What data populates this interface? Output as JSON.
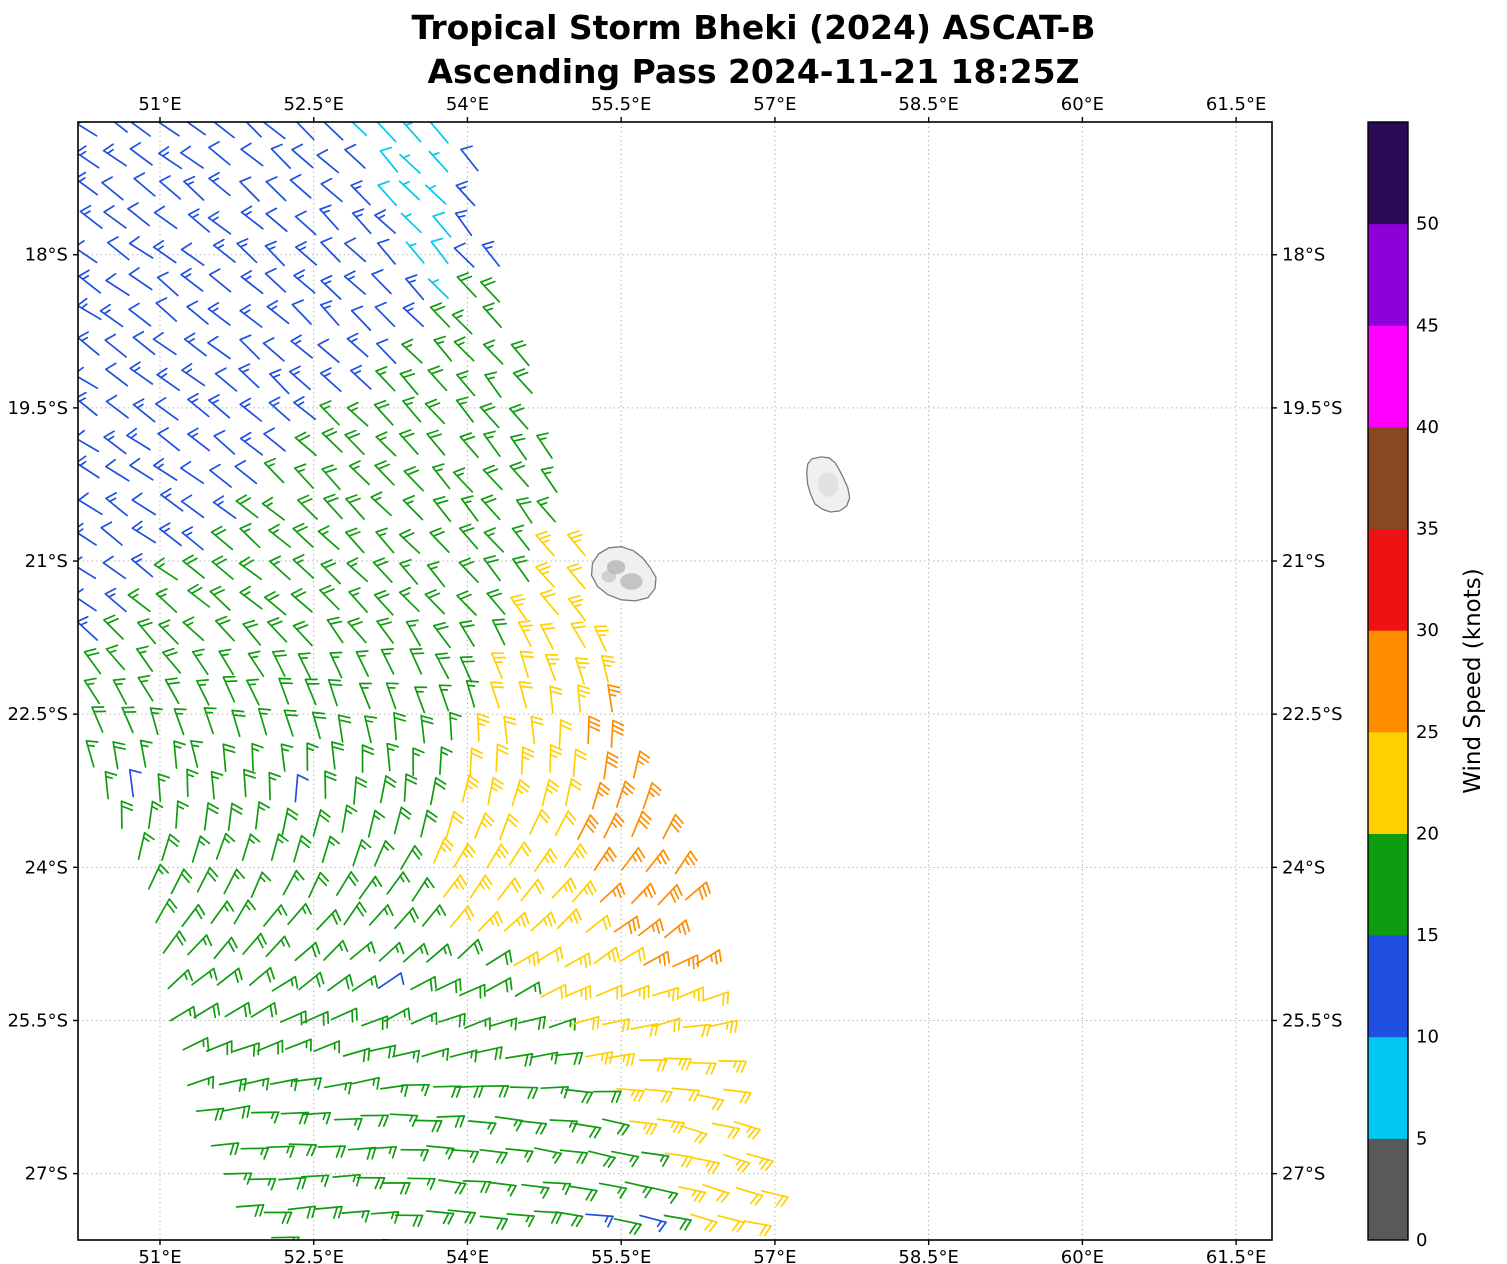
{
  "title": {
    "line1": "Tropical Storm Bheki (2024) ASCAT-B",
    "line2": "Ascending Pass 2024-11-21 18:25Z"
  },
  "chart_data": {
    "type": "wind_barb_map",
    "title": "Tropical Storm Bheki (2024) ASCAT-B",
    "subtitle": "Ascending Pass 2024-11-21 18:25Z",
    "grid": {
      "show": true,
      "style": "dotted",
      "color": "#b5b5b5"
    },
    "x_axis": {
      "range": [
        50.2,
        61.85
      ],
      "ticks": [
        51,
        52.5,
        54,
        55.5,
        57,
        58.5,
        60,
        61.5
      ],
      "tick_labels": [
        "51°E",
        "52.5°E",
        "54°E",
        "55.5°E",
        "57°E",
        "58.5°E",
        "60°E",
        "61.5°E"
      ],
      "labels_on": "top and bottom"
    },
    "y_axis": {
      "range": [
        16.7,
        27.65
      ],
      "direction": "south-down",
      "ticks": [
        18,
        19.5,
        21,
        22.5,
        24,
        25.5,
        27
      ],
      "tick_labels": [
        "18°S",
        "19.5°S",
        "21°S",
        "22.5°S",
        "24°S",
        "25.5°S",
        "27°S"
      ],
      "labels_on": "left and right"
    },
    "colorbar": {
      "label": "Wind Speed (knots)",
      "tick_labels": [
        "0",
        "5",
        "10",
        "15",
        "20",
        "25",
        "30",
        "35",
        "40",
        "45",
        "50"
      ],
      "bands": [
        {
          "min": 0,
          "max": 5,
          "color": "#595959"
        },
        {
          "min": 5,
          "max": 10,
          "color": "#00c8f0"
        },
        {
          "min": 10,
          "max": 15,
          "color": "#1e4fe0"
        },
        {
          "min": 15,
          "max": 20,
          "color": "#109c10"
        },
        {
          "min": 20,
          "max": 25,
          "color": "#ffd000"
        },
        {
          "min": 25,
          "max": 30,
          "color": "#ff8c00"
        },
        {
          "min": 30,
          "max": 35,
          "color": "#ee1212"
        },
        {
          "min": 35,
          "max": 40,
          "color": "#8a4724"
        },
        {
          "min": 40,
          "max": 45,
          "color": "#ff00ff"
        },
        {
          "min": 45,
          "max": 50,
          "color": "#8d00d8"
        },
        {
          "min": 50,
          "max": 55,
          "color": "#2a0a55"
        }
      ]
    },
    "islands": [
      {
        "name": "Reunion",
        "outline": [
          [
            55.22,
            21.02
          ],
          [
            55.28,
            20.93
          ],
          [
            55.38,
            20.87
          ],
          [
            55.5,
            20.86
          ],
          [
            55.62,
            20.9
          ],
          [
            55.71,
            20.97
          ],
          [
            55.78,
            21.06
          ],
          [
            55.84,
            21.16
          ],
          [
            55.83,
            21.27
          ],
          [
            55.76,
            21.36
          ],
          [
            55.64,
            21.39
          ],
          [
            55.5,
            21.38
          ],
          [
            55.37,
            21.33
          ],
          [
            55.27,
            21.25
          ],
          [
            55.21,
            21.14
          ]
        ],
        "shading": [
          {
            "c": [
              55.45,
              21.06
            ],
            "rx": 0.09,
            "ry": 0.07,
            "color": "#9a9a9a",
            "opacity": 0.55
          },
          {
            "c": [
              55.6,
              21.2
            ],
            "rx": 0.11,
            "ry": 0.08,
            "color": "#8f8f8f",
            "opacity": 0.45
          },
          {
            "c": [
              55.38,
              21.15
            ],
            "rx": 0.07,
            "ry": 0.06,
            "color": "#a8a8a8",
            "opacity": 0.45
          }
        ]
      },
      {
        "name": "Mauritius",
        "outline": [
          [
            57.36,
            20.0
          ],
          [
            57.45,
            19.98
          ],
          [
            57.53,
            19.99
          ],
          [
            57.59,
            20.04
          ],
          [
            57.63,
            20.11
          ],
          [
            57.67,
            20.19
          ],
          [
            57.71,
            20.28
          ],
          [
            57.73,
            20.38
          ],
          [
            57.7,
            20.46
          ],
          [
            57.63,
            20.51
          ],
          [
            57.54,
            20.52
          ],
          [
            57.46,
            20.49
          ],
          [
            57.39,
            20.44
          ],
          [
            57.35,
            20.35
          ],
          [
            57.32,
            20.25
          ],
          [
            57.31,
            20.14
          ],
          [
            57.32,
            20.05
          ]
        ],
        "shading": [
          {
            "c": [
              57.52,
              20.25
            ],
            "rx": 0.1,
            "ry": 0.12,
            "color": "#c9c9c9",
            "opacity": 0.35
          }
        ]
      }
    ],
    "wind_field": {
      "units": "knots",
      "grid_step_deg": {
        "lat": 0.31,
        "lon": 0.262
      },
      "swath_left_lon_by_lat": [
        [
          16.7,
          50.08
        ],
        [
          22.6,
          50.08
        ],
        [
          23.5,
          50.55
        ],
        [
          24.5,
          50.9
        ],
        [
          25.5,
          51.05
        ],
        [
          26.5,
          51.35
        ],
        [
          27.65,
          51.8
        ]
      ],
      "swath_right_lon_by_lat": [
        [
          16.7,
          54.05
        ],
        [
          27.65,
          57.1
        ]
      ],
      "regions": {
        "cyan_wedge": {
          "max_lat": 18.65,
          "west_lon_at": [
            [
              16.7,
              52.85
            ],
            [
              18.65,
              53.86
            ]
          ],
          "east_lon_at": [
            [
              16.7,
              54.08
            ],
            [
              18.65,
              53.85
            ]
          ],
          "speed_kt": 7.5
        },
        "blue_boundary": {
          "desc": "blue northwest of this line",
          "lat_at_lon": [
            [
              50.2,
              22.1
            ],
            [
              54.2,
              18.2
            ]
          ],
          "speed_kt": 12.5
        },
        "green": {
          "speed_kt": 17.5
        },
        "yellow": {
          "min_lat": 20.55,
          "west_lon_by_lat": [
            [
              20.55,
              55.0
            ],
            [
              21.5,
              54.55
            ],
            [
              22.5,
              54.05
            ],
            [
              23.3,
              53.65
            ],
            [
              24.4,
              53.6
            ],
            [
              25.2,
              54.5
            ],
            [
              26.0,
              55.2
            ],
            [
              26.8,
              55.75
            ],
            [
              27.65,
              56.15
            ]
          ],
          "speed_kt": 22.5
        },
        "orange": {
          "lat_range": [
            22.15,
            25.35
          ],
          "west_lon_by_lat": [
            [
              22.15,
              55.45
            ],
            [
              23.0,
              55.05
            ],
            [
              24.0,
              55.0
            ],
            [
              24.7,
              55.35
            ],
            [
              25.35,
              55.95
            ]
          ],
          "east_lon_by_lat": [
            [
              22.15,
              57.2
            ],
            [
              24.4,
              57.2
            ],
            [
              25.35,
              55.9
            ]
          ],
          "speed_kt": 27
        }
      },
      "direction": {
        "staff_toward_deg_north_region": 315,
        "staff_toward_deg_south_region": 450,
        "rotate_lat_start": 21.5,
        "rotate_lat_end": 26.4,
        "lon_coeff_deg_per_deg": 4
      },
      "outliers": [
        {
          "lat": 23.34,
          "lon": 50.69,
          "kt": 13
        },
        {
          "lat": 23.44,
          "lon": 52.37,
          "kt": 13
        },
        {
          "lat": 25.15,
          "lon": 53.24,
          "kt": 13
        },
        {
          "lat": 27.53,
          "lon": 55.29,
          "kt": 13
        },
        {
          "lat": 27.53,
          "lon": 55.68,
          "kt": 13
        },
        {
          "lat": 27.6,
          "lon": 54.27,
          "kt": 22.5
        }
      ]
    }
  }
}
